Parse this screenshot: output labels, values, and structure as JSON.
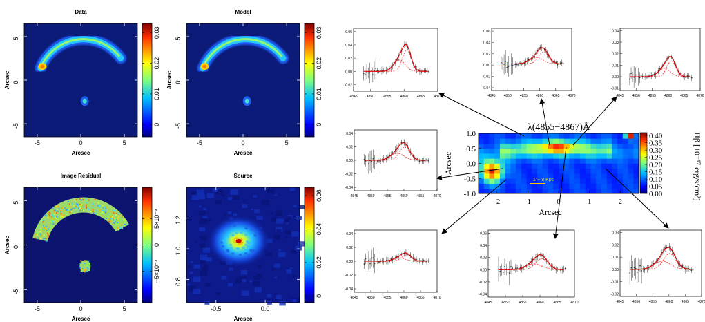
{
  "chart_data": [
    {
      "type": "heatmap",
      "id": "data",
      "title": "Data",
      "xlabel": "Arcsec",
      "ylabel": "Arcsec",
      "xlim": [
        -6.5,
        6.5
      ],
      "ylim": [
        -6.5,
        6.5
      ],
      "xticks": [
        "-5",
        "0",
        "5"
      ],
      "yticks": [
        "-5",
        "0",
        "5"
      ],
      "colorbar": {
        "ticks": [
          "0",
          "0.01",
          "0.02",
          "0.03"
        ],
        "min": -0.004,
        "max": 0.033
      }
    },
    {
      "type": "heatmap",
      "id": "model",
      "title": "Model",
      "xlabel": "Arcsec",
      "ylabel": "Arcsec",
      "xlim": [
        -6.5,
        6.5
      ],
      "ylim": [
        -6.5,
        6.5
      ],
      "xticks": [
        "-5",
        "0",
        "5"
      ],
      "yticks": [
        "-5",
        "0",
        "5"
      ],
      "colorbar": {
        "ticks": [
          "0",
          "0.01",
          "0.02",
          "0.03"
        ],
        "min": -0.004,
        "max": 0.033
      }
    },
    {
      "type": "heatmap",
      "id": "residual",
      "title": "Image Residual",
      "xlabel": "Arcsec",
      "ylabel": "Arcsec",
      "xlim": [
        -6.5,
        6.5
      ],
      "ylim": [
        -6.5,
        6.5
      ],
      "xticks": [
        "-5",
        "0",
        "5"
      ],
      "yticks": [
        "-5",
        "0",
        "5"
      ],
      "colorbar": {
        "ticks": [
          "5×10⁻⁴",
          "0",
          "−5×10⁻⁴"
        ],
        "min": -0.0011,
        "max": 0.0011
      }
    },
    {
      "type": "heatmap",
      "id": "source",
      "title": "Source",
      "xlabel": "Arcsec",
      "ylabel": "",
      "xlim": [
        -0.8,
        0.35
      ],
      "ylim": [
        0.65,
        1.4
      ],
      "xticks": [
        "-0.5",
        "0.0"
      ],
      "yticks": [
        "0.8",
        "1.0",
        "1.2"
      ],
      "colorbar": {
        "ticks": [
          "0",
          "0.02",
          "0.04",
          "0.06"
        ],
        "min": -0.004,
        "max": 0.065
      }
    },
    {
      "type": "heatmap",
      "id": "hbeta_map",
      "title": "λ(4855−4867)Å",
      "xlabel": "Arcsec",
      "ylabel": "Arcsec",
      "xlim": [
        -2.6,
        2.6
      ],
      "ylim": [
        -1.0,
        1.0
      ],
      "xticks": [
        "-2",
        "-1",
        "0",
        "1",
        "2"
      ],
      "yticks": [
        "1.0",
        "0.5",
        "0.0",
        "-0.5",
        "-1.0"
      ],
      "scale_bar": "1\"~ 8 Kpc",
      "colorbar": {
        "label": "Hβ [10⁻¹⁷ erg/s/cm²]",
        "ticks": [
          "0.40",
          "0.35",
          "0.30",
          "0.25",
          "0.20",
          "0.15",
          "0.10",
          "0.05",
          "0.00"
        ],
        "min": 0.0,
        "max": 0.42
      }
    },
    {
      "type": "line",
      "id": "spectra",
      "description_free": true,
      "xlim": [
        4845,
        4870
      ],
      "xticks": [
        "4845",
        "4850",
        "4855",
        "4860",
        "4865",
        "4870"
      ],
      "panels": [
        {
          "pos": "top-left",
          "yticks": [
            "0.06",
            "0.04",
            "0.02",
            "0.00",
            "-0.02"
          ],
          "ylim": [
            -0.03,
            0.065
          ],
          "peak": 4860.8,
          "amp": 0.045,
          "sigma": 1.3,
          "cont": 0.0,
          "series": [
            "data",
            "model",
            "components"
          ]
        },
        {
          "pos": "top-middle",
          "yticks": [
            "0.06",
            "0.04",
            "0.02",
            "0.00",
            "-0.02",
            "-0.04"
          ],
          "ylim": [
            -0.045,
            0.065
          ],
          "peak": 4861.2,
          "amp": 0.03,
          "sigma": 1.6,
          "cont": 0.002
        },
        {
          "pos": "top-right",
          "yticks": [
            "0.04",
            "0.03",
            "0.02",
            "0.01",
            "0.00",
            "-0.01"
          ],
          "ylim": [
            -0.012,
            0.042
          ],
          "peak": 4861.0,
          "amp": 0.019,
          "sigma": 1.4,
          "cont": 0.0
        },
        {
          "pos": "middle-left",
          "yticks": [
            "0.04",
            "0.02",
            "0.00",
            "-0.02",
            "-0.04"
          ],
          "ylim": [
            -0.045,
            0.045
          ],
          "peak": 4860.2,
          "amp": 0.027,
          "sigma": 1.6,
          "cont": 0.0
        },
        {
          "pos": "bottom-left",
          "yticks": [
            "0.04",
            "0.02",
            "0.00",
            "-0.02",
            "-0.04"
          ],
          "ylim": [
            -0.045,
            0.045
          ],
          "peak": 4860.8,
          "amp": 0.013,
          "sigma": 1.4,
          "cont": 0.0
        },
        {
          "pos": "bottom-middle",
          "yticks": [
            "0.06",
            "0.04",
            "0.02",
            "0.00",
            "-0.02",
            "-0.04"
          ],
          "ylim": [
            -0.045,
            0.065
          ],
          "peak": 4860.5,
          "amp": 0.025,
          "sigma": 1.8,
          "cont": 0.0
        },
        {
          "pos": "bottom-right",
          "yticks": [
            "0.03",
            "0.02",
            "0.01",
            "0.00",
            "-0.01",
            "-0.02"
          ],
          "ylim": [
            -0.022,
            0.032
          ],
          "peak": 4860.2,
          "amp": 0.018,
          "sigma": 1.9,
          "cont": 0.0
        }
      ]
    }
  ]
}
